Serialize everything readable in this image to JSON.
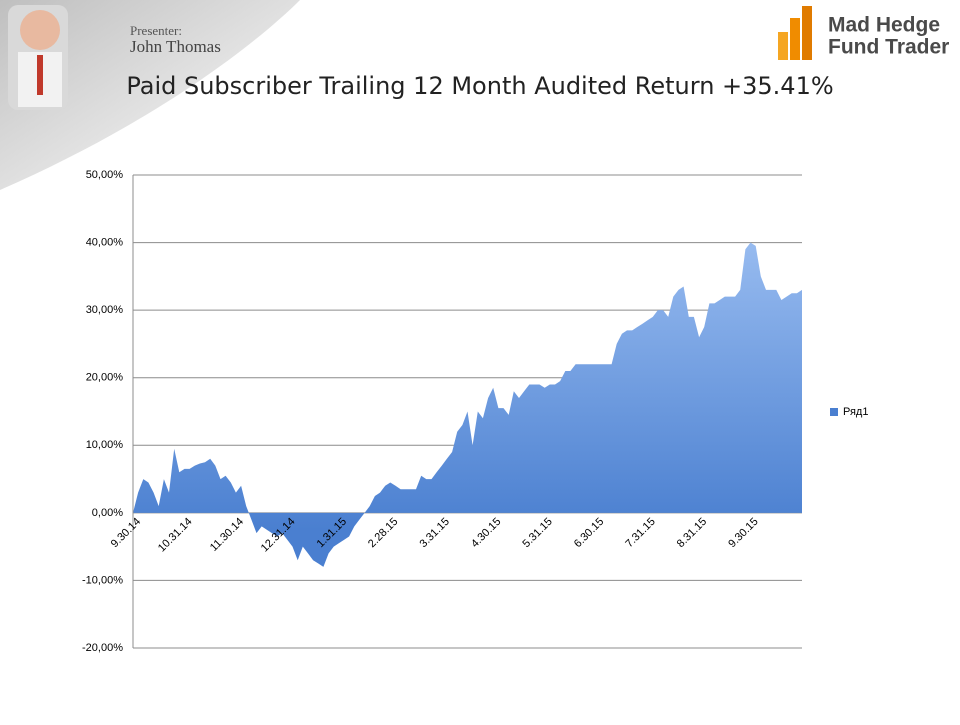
{
  "header": {
    "presenter_label": "Presenter:",
    "presenter_name": "John Thomas",
    "logo_line1": "Mad Hedge",
    "logo_line2": "Fund Trader"
  },
  "chart_data": {
    "type": "area",
    "title": "Paid Subscriber Trailing 12 Month Audited Return +35.41%",
    "categories": [
      "9.30.14",
      null,
      null,
      null,
      null,
      null,
      null,
      null,
      null,
      null,
      "10.31.14",
      null,
      null,
      null,
      null,
      null,
      null,
      null,
      null,
      null,
      "11.30.14",
      null,
      null,
      null,
      null,
      null,
      null,
      null,
      null,
      null,
      "12.31.14",
      null,
      null,
      null,
      null,
      null,
      null,
      null,
      null,
      null,
      "1.31.15",
      null,
      null,
      null,
      null,
      null,
      null,
      null,
      null,
      null,
      "2.28.15",
      null,
      null,
      null,
      null,
      null,
      null,
      null,
      null,
      null,
      "3.31.15",
      null,
      null,
      null,
      null,
      null,
      null,
      null,
      null,
      null,
      "4.30.15",
      null,
      null,
      null,
      null,
      null,
      null,
      null,
      null,
      null,
      "5.31.15",
      null,
      null,
      null,
      null,
      null,
      null,
      null,
      null,
      null,
      "6.30.15",
      null,
      null,
      null,
      null,
      null,
      null,
      null,
      null,
      null,
      "7.31.15",
      null,
      null,
      null,
      null,
      null,
      null,
      null,
      null,
      null,
      "8.31.15",
      null,
      null,
      null,
      null,
      null,
      null,
      null,
      null,
      null,
      "9.30.15",
      null,
      null,
      null,
      null,
      null,
      null,
      null,
      null,
      null,
      null
    ],
    "series": [
      {
        "name": "Ряд1",
        "color": "#4a7fd0",
        "values": [
          0,
          3,
          5,
          4.5,
          3,
          1,
          5,
          3,
          9.5,
          6,
          6.5,
          6.5,
          7,
          7.3,
          7.5,
          8,
          7,
          5,
          5.5,
          4.5,
          3,
          4,
          1,
          -1,
          -3,
          -2,
          -2.5,
          -3,
          -3.5,
          -3,
          -4,
          -5,
          -7,
          -5,
          -6,
          -7,
          -7.5,
          -8,
          -6,
          -5,
          -4.5,
          -4,
          -3.5,
          -2,
          -1,
          0,
          1,
          2.5,
          3,
          4,
          4.5,
          4,
          3.5,
          3.5,
          3.5,
          3.5,
          5.5,
          5,
          5,
          6,
          7,
          8,
          9,
          12,
          13,
          15,
          10,
          15,
          14,
          17,
          18.5,
          15.5,
          15.5,
          14.5,
          18,
          17,
          18,
          19,
          19,
          19,
          18.5,
          19,
          19,
          19.5,
          21,
          21,
          22,
          22,
          22,
          22,
          22,
          22,
          22,
          22,
          25,
          26.5,
          27,
          27,
          27.5,
          28,
          28.5,
          29,
          30,
          30,
          29,
          32,
          33,
          33.5,
          29,
          29,
          26,
          27.5,
          31,
          31,
          31.5,
          32,
          32,
          32,
          33,
          39,
          40,
          39.5,
          35,
          33,
          33,
          33,
          31.5,
          32,
          32.5,
          32.5,
          33
        ]
      }
    ],
    "ylim": [
      -20,
      50
    ],
    "yticks": [
      {
        "value": -20,
        "label": "-20,00%"
      },
      {
        "value": -10,
        "label": "-10,00%"
      },
      {
        "value": 0,
        "label": "0,00%"
      },
      {
        "value": 10,
        "label": "10,00%"
      },
      {
        "value": 20,
        "label": "20,00%"
      },
      {
        "value": 30,
        "label": "30,00%"
      },
      {
        "value": 40,
        "label": "40,00%"
      },
      {
        "value": 50,
        "label": "50,00%"
      }
    ],
    "grid": true,
    "legend": "right"
  }
}
